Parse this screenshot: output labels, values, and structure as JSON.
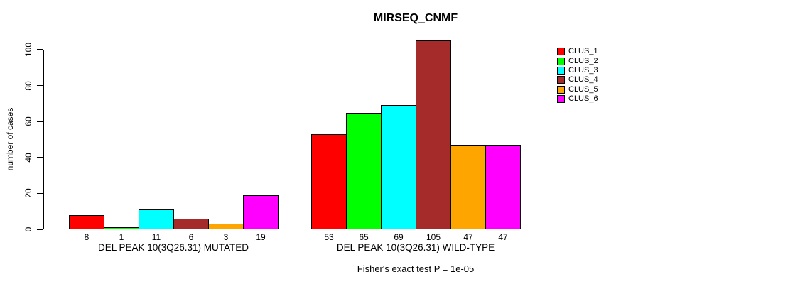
{
  "title": "MIRSEQ_CNMF",
  "subtitle": "Fisher's exact test P = 1e-05",
  "ylabel": "number of cases",
  "chart_data": {
    "type": "bar",
    "title": "MIRSEQ_CNMF",
    "xlabel": "",
    "ylabel": "number of cases",
    "ylim": [
      0,
      100
    ],
    "yticks": [
      0,
      20,
      40,
      60,
      80,
      100
    ],
    "grid": false,
    "legend_position": "right",
    "categories": [
      "DEL PEAK 10(3Q26.31) MUTATED",
      "DEL PEAK 10(3Q26.31) WILD-TYPE"
    ],
    "series": [
      {
        "name": "CLUS_1",
        "color": "#FF0000",
        "values": [
          8,
          53
        ]
      },
      {
        "name": "CLUS_2",
        "color": "#00FF00",
        "values": [
          1,
          65
        ]
      },
      {
        "name": "CLUS_3",
        "color": "#00FFFF",
        "values": [
          11,
          69
        ]
      },
      {
        "name": "CLUS_4",
        "color": "#A52A2A",
        "values": [
          6,
          105
        ]
      },
      {
        "name": "CLUS_5",
        "color": "#FFA500",
        "values": [
          3,
          47
        ]
      },
      {
        "name": "CLUS_6",
        "color": "#FF00FF",
        "values": [
          19,
          47
        ]
      }
    ],
    "bar_value_labels": [
      [
        8,
        1,
        11,
        6,
        3,
        19
      ],
      [
        53,
        65,
        69,
        105,
        47,
        47
      ]
    ],
    "annotation": "Fisher's exact test P = 1e-05"
  }
}
